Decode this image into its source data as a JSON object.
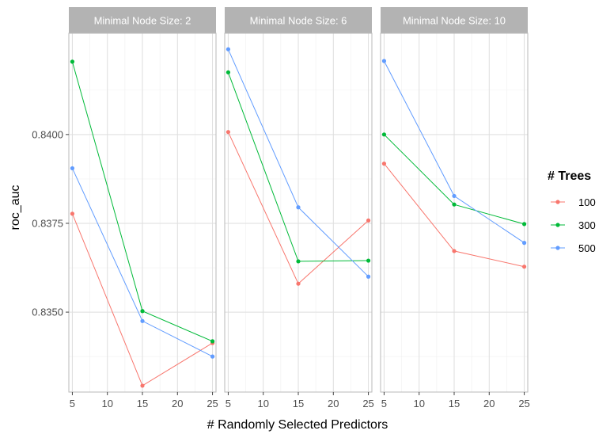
{
  "chart_data": {
    "type": "line",
    "xlabel": "# Randomly Selected Predictors",
    "ylabel": "roc_auc",
    "x_ticks": [
      5,
      10,
      15,
      20,
      25
    ],
    "x_tick_labels": [
      "5",
      "10",
      "15",
      "20",
      "25"
    ],
    "y_ticks": [
      0.835,
      0.8375,
      0.84
    ],
    "y_tick_labels": [
      "0.8350",
      "0.8375",
      "0.8400"
    ],
    "xlim": [
      4.5,
      25.5
    ],
    "ylim": [
      0.83275,
      0.84285
    ],
    "grid": true,
    "legend": {
      "title": "# Trees",
      "position": "right",
      "entries": [
        "100",
        "300",
        "500"
      ]
    },
    "series_colors": {
      "100": "#F8766D",
      "300": "#00BA38",
      "500": "#619CFF"
    },
    "panels": [
      {
        "title": "Minimal Node Size: 2",
        "series": [
          {
            "name": "100",
            "x": [
              5,
              15,
              25
            ],
            "y": [
              0.83777,
              0.83293,
              0.83413
            ]
          },
          {
            "name": "300",
            "x": [
              5,
              15,
              25
            ],
            "y": [
              0.84205,
              0.83503,
              0.83418
            ]
          },
          {
            "name": "500",
            "x": [
              5,
              15,
              25
            ],
            "y": [
              0.83905,
              0.83475,
              0.83375
            ]
          }
        ]
      },
      {
        "title": "Minimal Node Size: 6",
        "series": [
          {
            "name": "100",
            "x": [
              5,
              15,
              25
            ],
            "y": [
              0.84007,
              0.8358,
              0.83758
            ]
          },
          {
            "name": "300",
            "x": [
              5,
              15,
              25
            ],
            "y": [
              0.84175,
              0.83643,
              0.83645
            ]
          },
          {
            "name": "500",
            "x": [
              5,
              15,
              25
            ],
            "y": [
              0.8424,
              0.83795,
              0.836
            ]
          }
        ]
      },
      {
        "title": "Minimal Node Size: 10",
        "series": [
          {
            "name": "100",
            "x": [
              5,
              15,
              25
            ],
            "y": [
              0.83918,
              0.83672,
              0.83628
            ]
          },
          {
            "name": "300",
            "x": [
              5,
              15,
              25
            ],
            "y": [
              0.84,
              0.83803,
              0.83748
            ]
          },
          {
            "name": "500",
            "x": [
              5,
              15,
              25
            ],
            "y": [
              0.84207,
              0.83827,
              0.83695
            ]
          }
        ]
      }
    ]
  }
}
